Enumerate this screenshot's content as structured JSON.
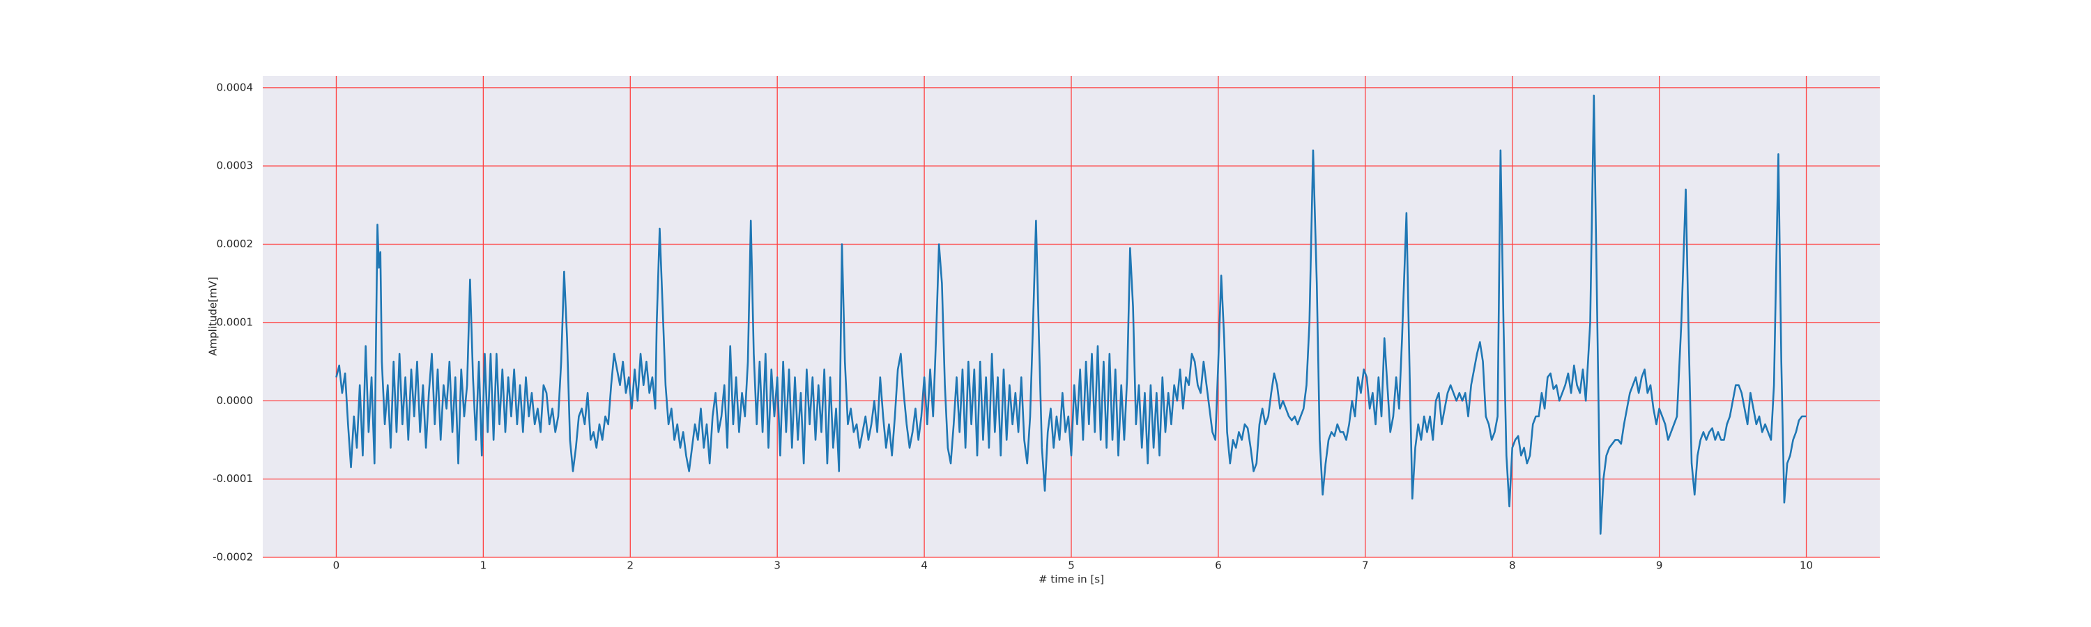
{
  "chart_data": {
    "type": "line",
    "xlabel": "# time in [s]",
    "ylabel": "Amplitude[mV]",
    "color": "#1f77b4",
    "background": "#eaeaf2",
    "grid": true,
    "grid_color": "#ff4040",
    "xlim": [
      -0.5,
      10.5
    ],
    "ylim": [
      -0.0002,
      0.000415
    ],
    "xticks": [
      0,
      1,
      2,
      3,
      4,
      5,
      6,
      7,
      8,
      9,
      10
    ],
    "yticks": [
      {
        "value": -0.0002,
        "label": "-0.0002"
      },
      {
        "value": -0.0001,
        "label": "-0.0001"
      },
      {
        "value": 0,
        "label": "0.0000"
      },
      {
        "value": 0.0001,
        "label": "0.0001"
      },
      {
        "value": 0.0002,
        "label": "0.0002"
      },
      {
        "value": 0.0003,
        "label": "0.0003"
      },
      {
        "value": 0.0004,
        "label": "0.0004"
      }
    ],
    "x": [
      0,
      0.02,
      0.04,
      0.06,
      0.08,
      0.1,
      0.12,
      0.14,
      0.16,
      0.18,
      0.2,
      0.22,
      0.24,
      0.26,
      0.28,
      0.29,
      0.3,
      0.31,
      0.33,
      0.35,
      0.37,
      0.39,
      0.41,
      0.43,
      0.45,
      0.47,
      0.49,
      0.51,
      0.53,
      0.55,
      0.57,
      0.59,
      0.61,
      0.63,
      0.65,
      0.67,
      0.69,
      0.71,
      0.73,
      0.75,
      0.77,
      0.79,
      0.81,
      0.83,
      0.85,
      0.87,
      0.89,
      0.91,
      0.93,
      0.95,
      0.97,
      0.99,
      1.01,
      1.03,
      1.05,
      1.07,
      1.09,
      1.11,
      1.13,
      1.15,
      1.17,
      1.19,
      1.21,
      1.23,
      1.25,
      1.27,
      1.29,
      1.31,
      1.33,
      1.35,
      1.37,
      1.39,
      1.41,
      1.43,
      1.45,
      1.47,
      1.49,
      1.51,
      1.53,
      1.55,
      1.57,
      1.59,
      1.61,
      1.63,
      1.65,
      1.67,
      1.69,
      1.71,
      1.73,
      1.75,
      1.77,
      1.79,
      1.81,
      1.83,
      1.85,
      1.87,
      1.89,
      1.91,
      1.93,
      1.95,
      1.97,
      1.99,
      2.01,
      2.03,
      2.05,
      2.07,
      2.09,
      2.11,
      2.13,
      2.15,
      2.17,
      2.18,
      2.2,
      2.22,
      2.24,
      2.26,
      2.28,
      2.3,
      2.32,
      2.34,
      2.36,
      2.38,
      2.4,
      2.42,
      2.44,
      2.46,
      2.48,
      2.5,
      2.52,
      2.54,
      2.56,
      2.58,
      2.6,
      2.62,
      2.64,
      2.66,
      2.68,
      2.7,
      2.72,
      2.74,
      2.76,
      2.78,
      2.8,
      2.82,
      2.84,
      2.86,
      2.88,
      2.9,
      2.92,
      2.94,
      2.96,
      2.98,
      3,
      3.02,
      3.04,
      3.06,
      3.08,
      3.1,
      3.12,
      3.14,
      3.16,
      3.18,
      3.2,
      3.22,
      3.24,
      3.26,
      3.28,
      3.3,
      3.32,
      3.34,
      3.36,
      3.38,
      3.4,
      3.42,
      3.44,
      3.46,
      3.48,
      3.5,
      3.52,
      3.54,
      3.56,
      3.58,
      3.6,
      3.62,
      3.64,
      3.66,
      3.68,
      3.7,
      3.72,
      3.74,
      3.76,
      3.78,
      3.8,
      3.82,
      3.84,
      3.86,
      3.88,
      3.9,
      3.92,
      3.94,
      3.96,
      3.98,
      4,
      4.02,
      4.04,
      4.06,
      4.08,
      4.1,
      4.12,
      4.14,
      4.16,
      4.18,
      4.2,
      4.22,
      4.24,
      4.26,
      4.28,
      4.3,
      4.32,
      4.34,
      4.36,
      4.38,
      4.4,
      4.42,
      4.44,
      4.46,
      4.48,
      4.5,
      4.52,
      4.54,
      4.56,
      4.58,
      4.6,
      4.62,
      4.64,
      4.66,
      4.68,
      4.7,
      4.72,
      4.74,
      4.76,
      4.78,
      4.8,
      4.82,
      4.84,
      4.86,
      4.88,
      4.9,
      4.92,
      4.94,
      4.96,
      4.98,
      5,
      5.02,
      5.04,
      5.06,
      5.08,
      5.1,
      5.12,
      5.14,
      5.16,
      5.18,
      5.2,
      5.22,
      5.24,
      5.26,
      5.28,
      5.3,
      5.32,
      5.34,
      5.36,
      5.38,
      5.4,
      5.42,
      5.44,
      5.46,
      5.48,
      5.5,
      5.52,
      5.54,
      5.56,
      5.58,
      5.6,
      5.62,
      5.64,
      5.66,
      5.68,
      5.7,
      5.72,
      5.74,
      5.76,
      5.78,
      5.8,
      5.82,
      5.84,
      5.86,
      5.88,
      5.9,
      5.92,
      5.94,
      5.96,
      5.98,
      6,
      6.02,
      6.04,
      6.06,
      6.08,
      6.1,
      6.12,
      6.14,
      6.16,
      6.18,
      6.2,
      6.22,
      6.24,
      6.26,
      6.28,
      6.3,
      6.32,
      6.34,
      6.36,
      6.38,
      6.4,
      6.42,
      6.44,
      6.46,
      6.48,
      6.5,
      6.52,
      6.54,
      6.56,
      6.58,
      6.6,
      6.62,
      6.645,
      6.67,
      6.69,
      6.71,
      6.73,
      6.75,
      6.77,
      6.79,
      6.81,
      6.83,
      6.85,
      6.87,
      6.89,
      6.91,
      6.93,
      6.95,
      6.97,
      6.99,
      7.01,
      7.03,
      7.05,
      7.07,
      7.09,
      7.11,
      7.13,
      7.15,
      7.17,
      7.19,
      7.21,
      7.23,
      7.25,
      7.28,
      7.3,
      7.32,
      7.34,
      7.36,
      7.38,
      7.4,
      7.42,
      7.44,
      7.46,
      7.48,
      7.5,
      7.52,
      7.54,
      7.56,
      7.58,
      7.6,
      7.62,
      7.64,
      7.66,
      7.68,
      7.7,
      7.72,
      7.74,
      7.76,
      7.78,
      7.8,
      7.82,
      7.84,
      7.86,
      7.88,
      7.9,
      7.92,
      7.94,
      7.96,
      7.98,
      8,
      8.02,
      8.04,
      8.06,
      8.08,
      8.1,
      8.12,
      8.14,
      8.16,
      8.18,
      8.2,
      8.22,
      8.24,
      8.26,
      8.28,
      8.3,
      8.32,
      8.34,
      8.36,
      8.38,
      8.4,
      8.42,
      8.44,
      8.46,
      8.48,
      8.5,
      8.53,
      8.555,
      8.58,
      8.6,
      8.62,
      8.64,
      8.66,
      8.68,
      8.7,
      8.72,
      8.74,
      8.76,
      8.78,
      8.8,
      8.82,
      8.84,
      8.86,
      8.88,
      8.9,
      8.92,
      8.94,
      8.96,
      8.98,
      9,
      9.02,
      9.04,
      9.06,
      9.08,
      9.1,
      9.12,
      9.15,
      9.18,
      9.2,
      9.22,
      9.24,
      9.26,
      9.28,
      9.3,
      9.32,
      9.34,
      9.36,
      9.38,
      9.4,
      9.42,
      9.44,
      9.46,
      9.48,
      9.5,
      9.52,
      9.54,
      9.56,
      9.58,
      9.6,
      9.62,
      9.64,
      9.66,
      9.68,
      9.7,
      9.72,
      9.74,
      9.76,
      9.78,
      9.81,
      9.83,
      9.85,
      9.87,
      9.89,
      9.91,
      9.93,
      9.95,
      9.97,
      10
    ],
    "values": [
      3e-05,
      4.5e-05,
      1e-05,
      3.5e-05,
      -3e-05,
      -8.5e-05,
      -2e-05,
      -6e-05,
      2e-05,
      -7e-05,
      7e-05,
      -4e-05,
      3e-05,
      -8e-05,
      0.000225,
      0.00017,
      0.00019,
      5e-05,
      -3e-05,
      2e-05,
      -6e-05,
      5e-05,
      -4e-05,
      6e-05,
      -3e-05,
      3e-05,
      -5e-05,
      4e-05,
      -2e-05,
      5e-05,
      -4e-05,
      2e-05,
      -6e-05,
      1e-05,
      6e-05,
      -3e-05,
      4e-05,
      -5e-05,
      2e-05,
      -1e-05,
      5e-05,
      -4e-05,
      3e-05,
      -8e-05,
      4e-05,
      -2e-05,
      2e-05,
      0.000155,
      3e-05,
      -5e-05,
      5e-05,
      -7e-05,
      6e-05,
      -4e-05,
      6e-05,
      -5e-05,
      6e-05,
      -3e-05,
      4e-05,
      -4e-05,
      3e-05,
      -2e-05,
      4e-05,
      -3e-05,
      2e-05,
      -4e-05,
      3e-05,
      -2e-05,
      1e-05,
      -3e-05,
      -1e-05,
      -4e-05,
      2e-05,
      1e-05,
      -3e-05,
      -1e-05,
      -4e-05,
      -2e-05,
      5e-05,
      0.000165,
      8e-05,
      -5e-05,
      -9e-05,
      -6e-05,
      -2e-05,
      -1e-05,
      -3e-05,
      1e-05,
      -5e-05,
      -4e-05,
      -6e-05,
      -3e-05,
      -5e-05,
      -2e-05,
      -3e-05,
      2e-05,
      6e-05,
      4e-05,
      2e-05,
      5e-05,
      1e-05,
      3e-05,
      -1e-05,
      4e-05,
      0,
      6e-05,
      2e-05,
      5e-05,
      1e-05,
      3e-05,
      -1e-05,
      0.0001,
      0.00022,
      0.00012,
      2e-05,
      -3e-05,
      -1e-05,
      -5e-05,
      -3e-05,
      -6e-05,
      -4e-05,
      -7e-05,
      -9e-05,
      -6e-05,
      -3e-05,
      -5e-05,
      -1e-05,
      -6e-05,
      -3e-05,
      -8e-05,
      -2e-05,
      1e-05,
      -4e-05,
      -2e-05,
      2e-05,
      -6e-05,
      7e-05,
      -3e-05,
      3e-05,
      -4e-05,
      1e-05,
      -2e-05,
      5e-05,
      0.00023,
      6e-05,
      -3e-05,
      5e-05,
      -4e-05,
      6e-05,
      -6e-05,
      4e-05,
      -2e-05,
      3e-05,
      -7e-05,
      5e-05,
      -4e-05,
      4e-05,
      -6e-05,
      3e-05,
      -5e-05,
      1e-05,
      -8e-05,
      4e-05,
      -3e-05,
      3e-05,
      -5e-05,
      2e-05,
      -4e-05,
      4e-05,
      -8e-05,
      3e-05,
      -6e-05,
      -1e-05,
      -9e-05,
      0.0002,
      5e-05,
      -3e-05,
      -1e-05,
      -4e-05,
      -3e-05,
      -6e-05,
      -4e-05,
      -2e-05,
      -5e-05,
      -3e-05,
      0,
      -4e-05,
      3e-05,
      -2e-05,
      -6e-05,
      -3e-05,
      -7e-05,
      -2e-05,
      4e-05,
      6e-05,
      1e-05,
      -3e-05,
      -6e-05,
      -4e-05,
      -1e-05,
      -5e-05,
      -2e-05,
      3e-05,
      -3e-05,
      4e-05,
      -2e-05,
      8e-05,
      0.0002,
      0.00015,
      2e-05,
      -6e-05,
      -8e-05,
      -3e-05,
      3e-05,
      -4e-05,
      4e-05,
      -6e-05,
      5e-05,
      -3e-05,
      4e-05,
      -7e-05,
      5e-05,
      -5e-05,
      3e-05,
      -6e-05,
      6e-05,
      -4e-05,
      3e-05,
      -7e-05,
      4e-05,
      -5e-05,
      2e-05,
      -3e-05,
      1e-05,
      -4e-05,
      3e-05,
      -5e-05,
      -8e-05,
      -2e-05,
      0.0001,
      0.00023,
      8e-05,
      -6e-05,
      -0.000115,
      -4e-05,
      -1e-05,
      -6e-05,
      -2e-05,
      -5e-05,
      1e-05,
      -4e-05,
      -2e-05,
      -7e-05,
      2e-05,
      -3e-05,
      4e-05,
      -5e-05,
      5e-05,
      -3e-05,
      6e-05,
      -4e-05,
      7e-05,
      -5e-05,
      5e-05,
      -6e-05,
      6e-05,
      -5e-05,
      4e-05,
      -7e-05,
      2e-05,
      -5e-05,
      3e-05,
      0.000195,
      0.00012,
      -3e-05,
      2e-05,
      -6e-05,
      1e-05,
      -8e-05,
      2e-05,
      -6e-05,
      1e-05,
      -7e-05,
      3e-05,
      -4e-05,
      1e-05,
      -3e-05,
      2e-05,
      0,
      4e-05,
      -1e-05,
      3e-05,
      2e-05,
      6e-05,
      5e-05,
      2e-05,
      1e-05,
      5e-05,
      2e-05,
      -1e-05,
      -4e-05,
      -5e-05,
      5e-05,
      0.00016,
      8e-05,
      -4e-05,
      -8e-05,
      -5e-05,
      -6e-05,
      -4e-05,
      -5e-05,
      -3e-05,
      -3.5e-05,
      -6e-05,
      -9e-05,
      -8e-05,
      -3e-05,
      -1e-05,
      -3e-05,
      -2e-05,
      1e-05,
      3.5e-05,
      2e-05,
      -1e-05,
      0,
      -1e-05,
      -2e-05,
      -2.5e-05,
      -2e-05,
      -3e-05,
      -2e-05,
      -1e-05,
      2e-05,
      0.0001,
      0.00032,
      0.00015,
      -5e-05,
      -0.00012,
      -8e-05,
      -5e-05,
      -4e-05,
      -4.5e-05,
      -3e-05,
      -4e-05,
      -4e-05,
      -5e-05,
      -3e-05,
      0,
      -2e-05,
      3e-05,
      1e-05,
      4e-05,
      3e-05,
      -1e-05,
      1e-05,
      -3e-05,
      3e-05,
      -2e-05,
      8e-05,
      2e-05,
      -4e-05,
      -2e-05,
      3e-05,
      -1e-05,
      8e-05,
      0.00024,
      5e-05,
      -0.000125,
      -6e-05,
      -3e-05,
      -5e-05,
      -2e-05,
      -4e-05,
      -2e-05,
      -5e-05,
      0,
      1e-05,
      -3e-05,
      -1e-05,
      1e-05,
      2e-05,
      1e-05,
      0,
      1e-05,
      0,
      1e-05,
      -2e-05,
      2e-05,
      4e-05,
      6e-05,
      7.5e-05,
      5e-05,
      -2e-05,
      -3e-05,
      -5e-05,
      -4e-05,
      -2e-05,
      0.00032,
      0.0001,
      -7e-05,
      -0.000135,
      -6e-05,
      -5e-05,
      -4.5e-05,
      -7e-05,
      -6e-05,
      -8e-05,
      -7e-05,
      -3e-05,
      -2e-05,
      -2e-05,
      1e-05,
      -1e-05,
      3e-05,
      3.5e-05,
      1.5e-05,
      2e-05,
      0,
      1e-05,
      2e-05,
      3.5e-05,
      1e-05,
      4.5e-05,
      2e-05,
      1e-05,
      4e-05,
      0,
      0.0001,
      0.00039,
      8e-05,
      -0.00017,
      -0.0001,
      -7e-05,
      -6e-05,
      -5.5e-05,
      -5e-05,
      -5e-05,
      -5.5e-05,
      -3e-05,
      -1e-05,
      1e-05,
      2e-05,
      3e-05,
      1e-05,
      3e-05,
      4e-05,
      1e-05,
      2e-05,
      -1e-05,
      -3e-05,
      -1e-05,
      -2e-05,
      -3e-05,
      -5e-05,
      -4e-05,
      -3e-05,
      -2e-05,
      0.0001,
      0.00027,
      8e-05,
      -8e-05,
      -0.00012,
      -7e-05,
      -5e-05,
      -4e-05,
      -5e-05,
      -4e-05,
      -3.5e-05,
      -5e-05,
      -4e-05,
      -5e-05,
      -5e-05,
      -3e-05,
      -2e-05,
      0,
      2e-05,
      2e-05,
      1e-05,
      -1e-05,
      -3e-05,
      1e-05,
      -1e-05,
      -3e-05,
      -2e-05,
      -4e-05,
      -3e-05,
      -4e-05,
      -5e-05,
      2e-05,
      0.000315,
      5e-05,
      -0.00013,
      -8e-05,
      -7e-05,
      -5e-05,
      -4e-05,
      -2.5e-05,
      -2e-05,
      -2e-05
    ]
  }
}
